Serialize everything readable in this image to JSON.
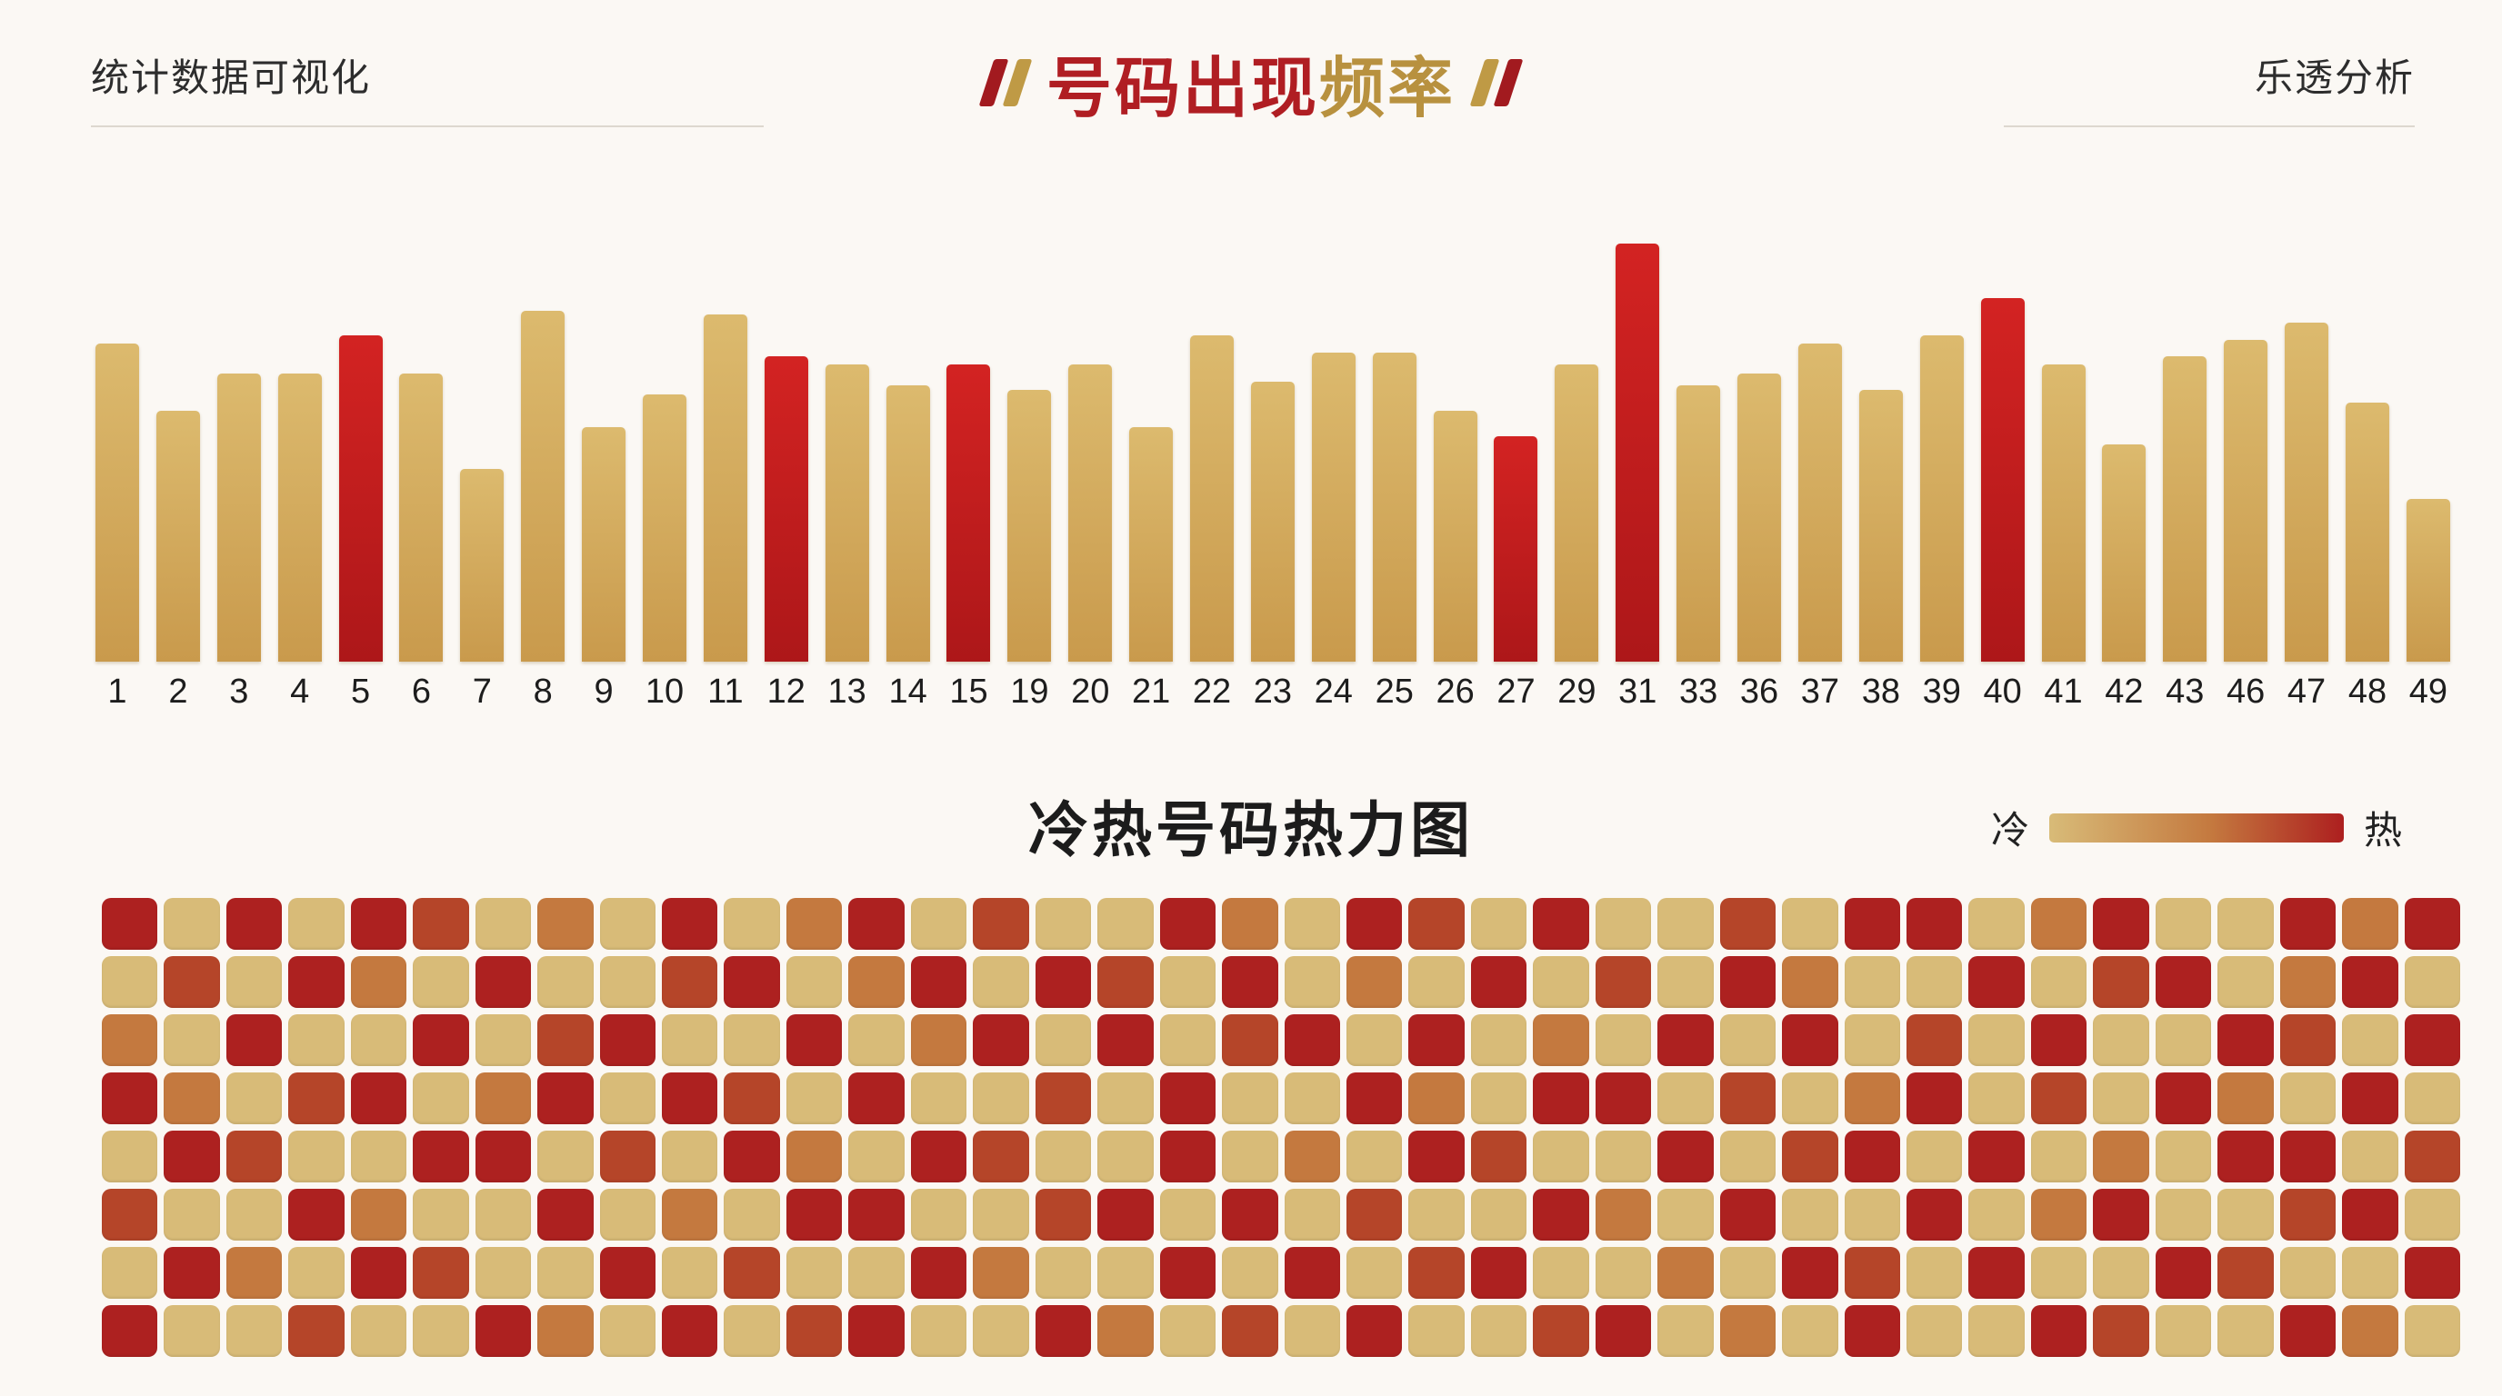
{
  "header": {
    "left_label": "统计数据可视化",
    "right_label": "乐透分析",
    "title_part1": "号码出现",
    "title_part2": "频率"
  },
  "colors": {
    "title_red": "#b01e23",
    "title_gold": "#b8913f",
    "bar_gold": "#cfa552",
    "bar_red": "#c01d1e",
    "background": "#fbf8f4"
  },
  "heatmap_section": {
    "title": "冷热号码热力图",
    "legend_cold_label": "冷",
    "legend_hot_label": "热"
  },
  "chart_data": [
    {
      "type": "bar",
      "title": "号码出现频率",
      "categories": [
        "1",
        "2",
        "3",
        "4",
        "5",
        "6",
        "7",
        "8",
        "9",
        "10",
        "11",
        "12",
        "13",
        "14",
        "15",
        "19",
        "20",
        "21",
        "22",
        "23",
        "24",
        "25",
        "26",
        "27",
        "29",
        "31",
        "33",
        "36",
        "37",
        "38",
        "39",
        "40",
        "41",
        "42",
        "43",
        "46",
        "47",
        "48",
        "49"
      ],
      "values": [
        76,
        60,
        69,
        69,
        78,
        69,
        46,
        84,
        56,
        64,
        83,
        73,
        71,
        66,
        71,
        65,
        71,
        56,
        78,
        67,
        74,
        74,
        60,
        54,
        71,
        100,
        66,
        69,
        76,
        65,
        78,
        87,
        71,
        52,
        73,
        77,
        81,
        62,
        39
      ],
      "red_categories": [
        "5",
        "12",
        "15",
        "27",
        "31",
        "40"
      ],
      "ylim": [
        0,
        100
      ],
      "grid": false,
      "legend": "none"
    },
    {
      "type": "heatmap",
      "title": "冷热号码热力图",
      "rows": 8,
      "cols": 38,
      "palette": [
        "#d8bb78",
        "#cfa15c",
        "#c4793f",
        "#b54529",
        "#ad2120"
      ],
      "palette_meaning": [
        "cold",
        "cool",
        "mid",
        "warm",
        "hot"
      ],
      "values": [
        [
          4,
          0,
          4,
          0,
          4,
          3,
          0,
          2,
          0,
          4,
          0,
          2,
          4,
          0,
          3,
          0,
          0,
          4,
          2,
          0,
          4,
          3,
          0,
          4,
          0,
          0,
          3,
          0,
          4,
          4,
          0,
          2,
          4,
          0,
          0,
          4,
          2,
          4
        ],
        [
          0,
          3,
          0,
          4,
          2,
          0,
          4,
          0,
          0,
          3,
          4,
          0,
          2,
          4,
          0,
          4,
          3,
          0,
          4,
          0,
          2,
          0,
          4,
          0,
          3,
          0,
          4,
          2,
          0,
          0,
          4,
          0,
          3,
          4,
          0,
          2,
          4,
          0
        ],
        [
          2,
          0,
          4,
          0,
          0,
          4,
          0,
          3,
          4,
          0,
          0,
          4,
          0,
          2,
          4,
          0,
          4,
          0,
          3,
          4,
          0,
          4,
          0,
          2,
          0,
          4,
          0,
          4,
          0,
          3,
          0,
          4,
          0,
          0,
          4,
          3,
          0,
          4
        ],
        [
          4,
          2,
          0,
          3,
          4,
          0,
          2,
          4,
          0,
          4,
          3,
          0,
          4,
          0,
          0,
          3,
          0,
          4,
          0,
          0,
          4,
          2,
          0,
          4,
          4,
          0,
          3,
          0,
          2,
          4,
          0,
          3,
          0,
          4,
          2,
          0,
          4,
          0
        ],
        [
          0,
          4,
          3,
          0,
          0,
          4,
          4,
          0,
          3,
          0,
          4,
          2,
          0,
          4,
          3,
          0,
          0,
          4,
          0,
          2,
          0,
          4,
          3,
          0,
          0,
          4,
          0,
          3,
          4,
          0,
          4,
          0,
          2,
          0,
          4,
          4,
          0,
          3
        ],
        [
          3,
          0,
          0,
          4,
          2,
          0,
          0,
          4,
          0,
          2,
          0,
          4,
          4,
          0,
          0,
          3,
          4,
          0,
          4,
          0,
          3,
          0,
          0,
          4,
          2,
          0,
          4,
          0,
          0,
          4,
          0,
          2,
          4,
          0,
          0,
          3,
          4,
          0
        ],
        [
          0,
          4,
          2,
          0,
          4,
          3,
          0,
          0,
          4,
          0,
          3,
          0,
          0,
          4,
          2,
          0,
          0,
          4,
          0,
          4,
          0,
          3,
          4,
          0,
          0,
          2,
          0,
          4,
          3,
          0,
          4,
          0,
          0,
          4,
          3,
          0,
          0,
          4
        ],
        [
          4,
          0,
          0,
          3,
          0,
          0,
          4,
          2,
          0,
          4,
          0,
          3,
          4,
          0,
          0,
          4,
          2,
          0,
          3,
          0,
          4,
          0,
          0,
          3,
          4,
          0,
          2,
          0,
          4,
          0,
          0,
          4,
          3,
          0,
          0,
          4,
          2,
          0
        ]
      ]
    }
  ]
}
